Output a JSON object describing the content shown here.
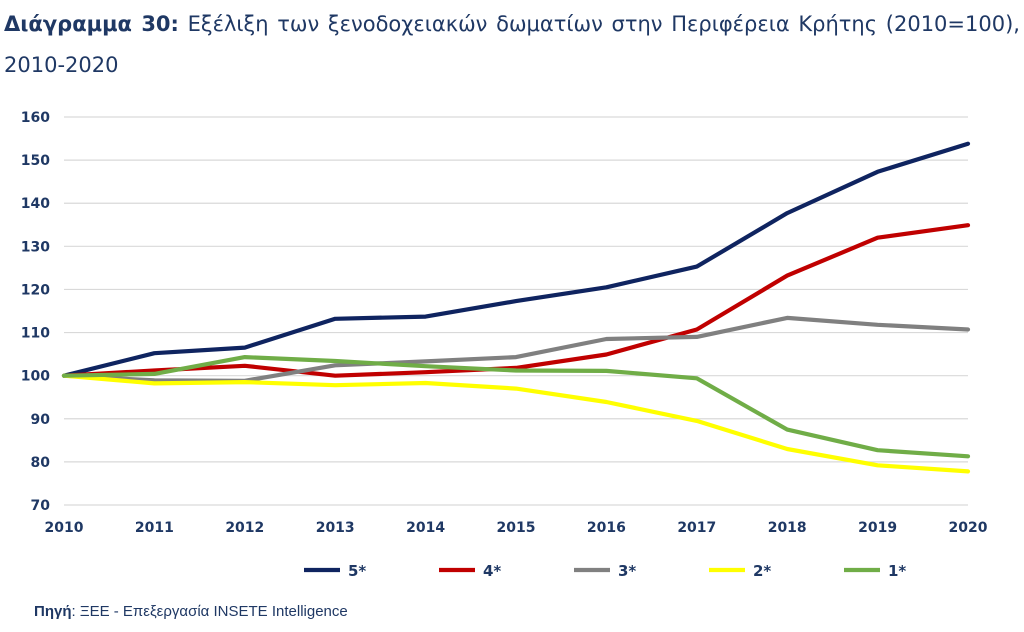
{
  "title": {
    "lead": "Διάγραμμα 30:",
    "text": "Εξέλιξη των ξενοδοχειακών δωματίων στην Περιφέρεια Κρήτης (2010=100), 2010-2020"
  },
  "source": {
    "lead": "Πηγή",
    "text": ": ΞΕΕ - Επεξεργασία INSETE Intelligence"
  },
  "colors": {
    "text": "#1f3864",
    "grid": "#d9d9d9"
  },
  "chart_data": {
    "type": "line",
    "x": [
      "2010",
      "2011",
      "2012",
      "2013",
      "2014",
      "2015",
      "2016",
      "2017",
      "2018",
      "2019",
      "2020"
    ],
    "ylim": [
      70,
      160
    ],
    "yticks": [
      "70",
      "80",
      "90",
      "100",
      "110",
      "120",
      "130",
      "140",
      "150",
      "160"
    ],
    "grid": "horizontal",
    "legend_position": "bottom",
    "series": [
      {
        "name": "5*",
        "color": "#0f2460",
        "values": [
          100,
          105.2,
          106.5,
          113.2,
          113.7,
          117.3,
          120.5,
          125.3,
          137.7,
          147.3,
          153.8
        ]
      },
      {
        "name": "4*",
        "color": "#c00000",
        "values": [
          100,
          101.2,
          102.3,
          100,
          100.8,
          101.8,
          104.9,
          110.7,
          123.2,
          132,
          134.9
        ]
      },
      {
        "name": "3*",
        "color": "#808080",
        "values": [
          100,
          98.9,
          98.8,
          102.4,
          103.3,
          104.3,
          108.5,
          109,
          113.4,
          111.8,
          110.7
        ]
      },
      {
        "name": "2*",
        "color": "#ffff00",
        "values": [
          100,
          98.2,
          98.5,
          97.8,
          98.3,
          97,
          93.9,
          89.5,
          83,
          79.2,
          77.8
        ]
      },
      {
        "name": "1*",
        "color": "#70ad47",
        "values": [
          100,
          100.4,
          104.3,
          103.4,
          102.2,
          101.2,
          101.1,
          99.4,
          87.5,
          82.7,
          81.3
        ]
      }
    ]
  }
}
